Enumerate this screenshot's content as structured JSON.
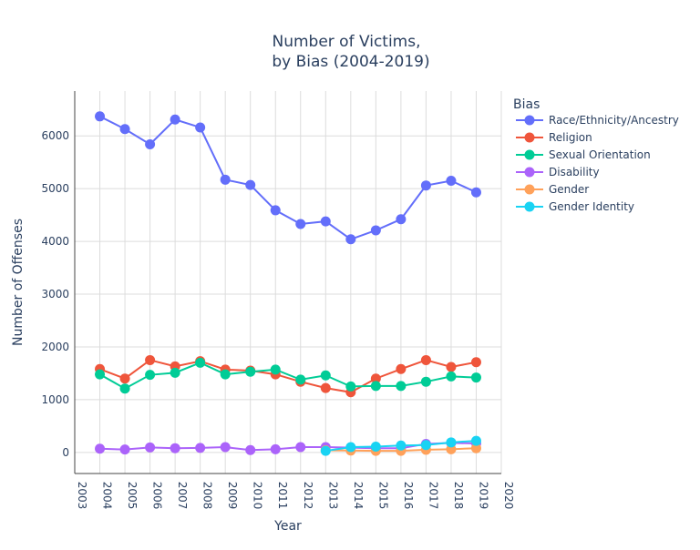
{
  "chart_data": {
    "type": "line",
    "title_line1": "Number of Victims,",
    "title_line2": "by Bias (2004-2019)",
    "xlabel": "Year",
    "ylabel": "Number of Offenses",
    "xlim": [
      2003,
      2020
    ],
    "ylim": [
      -400,
      6850
    ],
    "x_ticks": [
      "2003",
      "2004",
      "2005",
      "2006",
      "2007",
      "2008",
      "2009",
      "2010",
      "2011",
      "2012",
      "2013",
      "2014",
      "2015",
      "2016",
      "2017",
      "2018",
      "2019",
      "2020"
    ],
    "y_ticks": [
      {
        "v": 0,
        "label": "0"
      },
      {
        "v": 1000,
        "label": "1000"
      },
      {
        "v": 2000,
        "label": "2000"
      },
      {
        "v": 3000,
        "label": "3000"
      },
      {
        "v": 4000,
        "label": "4000"
      },
      {
        "v": 5000,
        "label": "5000"
      },
      {
        "v": 6000,
        "label": "6000"
      }
    ],
    "legend_title": "Bias",
    "legend_position": "top-right",
    "grid": true,
    "series": [
      {
        "name": "Race/Ethnicity/Ancestry",
        "color": "#636efa",
        "x": [
          2004,
          2005,
          2006,
          2007,
          2008,
          2009,
          2010,
          2011,
          2012,
          2013,
          2014,
          2015,
          2016,
          2017,
          2018,
          2019
        ],
        "y": [
          6370,
          6130,
          5840,
          6310,
          6160,
          5170,
          5070,
          4590,
          4330,
          4380,
          4040,
          4210,
          4420,
          5060,
          5150,
          4930
        ]
      },
      {
        "name": "Religion",
        "color": "#ef553b",
        "x": [
          2004,
          2005,
          2006,
          2007,
          2008,
          2009,
          2010,
          2011,
          2012,
          2013,
          2014,
          2015,
          2016,
          2017,
          2018,
          2019
        ],
        "y": [
          1580,
          1400,
          1750,
          1630,
          1730,
          1570,
          1550,
          1480,
          1340,
          1220,
          1140,
          1400,
          1580,
          1750,
          1620,
          1710
        ]
      },
      {
        "name": "Sexual Orientation",
        "color": "#00cc96",
        "x": [
          2004,
          2005,
          2006,
          2007,
          2008,
          2009,
          2010,
          2011,
          2012,
          2013,
          2014,
          2015,
          2016,
          2017,
          2018,
          2019
        ],
        "y": [
          1480,
          1210,
          1470,
          1510,
          1700,
          1480,
          1530,
          1570,
          1380,
          1460,
          1250,
          1260,
          1260,
          1340,
          1440,
          1420
        ]
      },
      {
        "name": "Disability",
        "color": "#ab63fa",
        "x": [
          2004,
          2005,
          2006,
          2007,
          2008,
          2009,
          2010,
          2011,
          2012,
          2013,
          2014,
          2015,
          2016,
          2017,
          2018,
          2019
        ],
        "y": [
          70,
          55,
          95,
          80,
          85,
          100,
          45,
          60,
          100,
          100,
          90,
          80,
          80,
          160,
          180,
          170
        ]
      },
      {
        "name": "Gender",
        "color": "#ffa15a",
        "x": [
          2013,
          2014,
          2015,
          2016,
          2017,
          2018,
          2019
        ],
        "y": [
          40,
          35,
          30,
          30,
          50,
          60,
          80
        ]
      },
      {
        "name": "Gender Identity",
        "color": "#19d3f3",
        "x": [
          2013,
          2014,
          2015,
          2016,
          2017,
          2018,
          2019
        ],
        "y": [
          30,
          100,
          110,
          130,
          140,
          190,
          220
        ]
      }
    ]
  }
}
